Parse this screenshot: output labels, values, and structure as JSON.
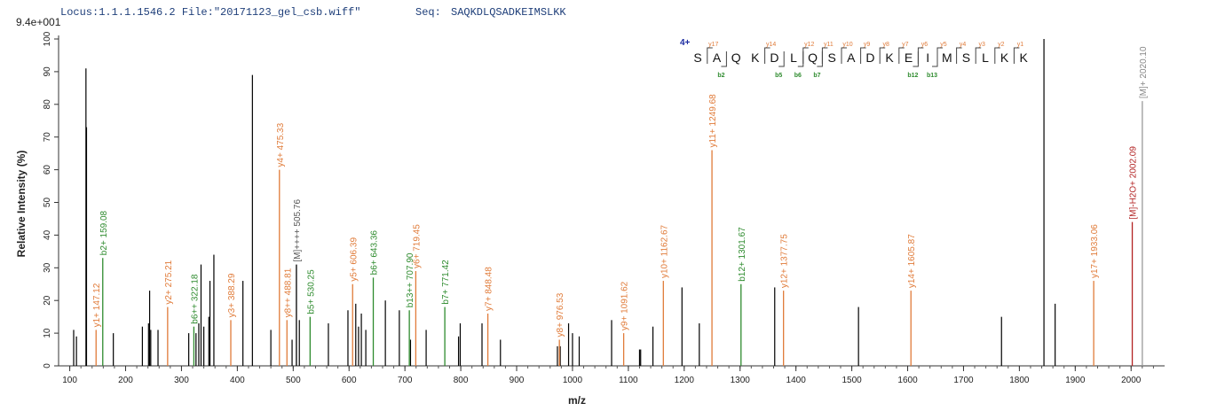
{
  "header": {
    "locus": "Locus:1.1.1.1546.2 File:\"20171123_gel_csb.wiff\"",
    "seq_label": "Seq:",
    "seq_value": "SAQKDLQSADKEIMSLKK",
    "scale": "9.4e+001"
  },
  "colors": {
    "y_ion": "#e07b39",
    "b_ion": "#2e8b2e",
    "precursor": "#b22222",
    "unassigned": "#000000",
    "header_blue": "#1f3f7a"
  },
  "chart_data": {
    "type": "bar",
    "xlabel": "m/z",
    "ylabel": "Relative Intensity (%)",
    "xlim": [
      80,
      2060
    ],
    "ylim": [
      0,
      100
    ],
    "x_ticks": [
      100,
      200,
      300,
      400,
      500,
      600,
      700,
      800,
      900,
      1000,
      1100,
      1200,
      1300,
      1400,
      1500,
      1600,
      1700,
      1800,
      1900,
      2000
    ],
    "y_ticks": [
      0,
      10,
      20,
      30,
      40,
      50,
      60,
      70,
      80,
      90,
      100
    ],
    "annotated_peaks": [
      {
        "mz": 147.12,
        "intensity": 11,
        "label": "y1+ 147.12",
        "ion": "y"
      },
      {
        "mz": 159.08,
        "intensity": 33,
        "label": "b2+ 159.08",
        "ion": "b"
      },
      {
        "mz": 275.21,
        "intensity": 18,
        "label": "y2+ 275.21",
        "ion": "y"
      },
      {
        "mz": 322.18,
        "intensity": 12,
        "label": "b6++ 322.18",
        "ion": "b"
      },
      {
        "mz": 388.29,
        "intensity": 14,
        "label": "y3+ 388.29",
        "ion": "y"
      },
      {
        "mz": 475.33,
        "intensity": 60,
        "label": "y4+ 475.33",
        "ion": "y"
      },
      {
        "mz": 488.81,
        "intensity": 14,
        "label": "y8++ 488.81",
        "ion": "y"
      },
      {
        "mz": 505.76,
        "intensity": 31,
        "label": "[M]++++ 505.76",
        "ion": "unassigned"
      },
      {
        "mz": 530.25,
        "intensity": 15,
        "label": "b5+ 530.25",
        "ion": "b"
      },
      {
        "mz": 606.39,
        "intensity": 25,
        "label": "y5+ 606.39",
        "ion": "y"
      },
      {
        "mz": 643.36,
        "intensity": 27,
        "label": "b6+ 643.36",
        "ion": "b"
      },
      {
        "mz": 707.9,
        "intensity": 17,
        "label": "b13++ 707.90",
        "ion": "b"
      },
      {
        "mz": 719.45,
        "intensity": 29,
        "label": "y6+ 719.45",
        "ion": "y"
      },
      {
        "mz": 771.42,
        "intensity": 18,
        "label": "b7+ 771.42",
        "ion": "b"
      },
      {
        "mz": 848.48,
        "intensity": 16,
        "label": "y7+ 848.48",
        "ion": "y"
      },
      {
        "mz": 976.53,
        "intensity": 8,
        "label": "y8+ 976.53",
        "ion": "y"
      },
      {
        "mz": 1091.62,
        "intensity": 10,
        "label": "y9+ 1091.62",
        "ion": "y"
      },
      {
        "mz": 1162.67,
        "intensity": 26,
        "label": "y10+ 1162.67",
        "ion": "y"
      },
      {
        "mz": 1249.68,
        "intensity": 66,
        "label": "y11+ 1249.68",
        "ion": "y"
      },
      {
        "mz": 1301.67,
        "intensity": 25,
        "label": "b12+ 1301.67",
        "ion": "b"
      },
      {
        "mz": 1377.75,
        "intensity": 23,
        "label": "y12+ 1377.75",
        "ion": "y"
      },
      {
        "mz": 1605.87,
        "intensity": 23,
        "label": "y14+ 1605.87",
        "ion": "y"
      },
      {
        "mz": 1933.06,
        "intensity": 26,
        "label": "y17+ 1933.06",
        "ion": "y"
      },
      {
        "mz": 2002.09,
        "intensity": 44,
        "label": "[M]-H2O+ 2002.09",
        "ion": "precursor"
      },
      {
        "mz": 2020.1,
        "intensity": 81,
        "label": "[M]+ 2020.10",
        "ion": "unassigned"
      }
    ],
    "unannotated_peaks": [
      {
        "mz": 107,
        "intensity": 11
      },
      {
        "mz": 112,
        "intensity": 9
      },
      {
        "mz": 129,
        "intensity": 91
      },
      {
        "mz": 130,
        "intensity": 73
      },
      {
        "mz": 178,
        "intensity": 10
      },
      {
        "mz": 230,
        "intensity": 12
      },
      {
        "mz": 241,
        "intensity": 13
      },
      {
        "mz": 243,
        "intensity": 23
      },
      {
        "mz": 245,
        "intensity": 11
      },
      {
        "mz": 258,
        "intensity": 11
      },
      {
        "mz": 313,
        "intensity": 10
      },
      {
        "mz": 326,
        "intensity": 10
      },
      {
        "mz": 331,
        "intensity": 13
      },
      {
        "mz": 335,
        "intensity": 31
      },
      {
        "mz": 340,
        "intensity": 12
      },
      {
        "mz": 349,
        "intensity": 15
      },
      {
        "mz": 351,
        "intensity": 26
      },
      {
        "mz": 358,
        "intensity": 34
      },
      {
        "mz": 410,
        "intensity": 26
      },
      {
        "mz": 427,
        "intensity": 89
      },
      {
        "mz": 460,
        "intensity": 11
      },
      {
        "mz": 498,
        "intensity": 8
      },
      {
        "mz": 511,
        "intensity": 14
      },
      {
        "mz": 563,
        "intensity": 13
      },
      {
        "mz": 598,
        "intensity": 17
      },
      {
        "mz": 612,
        "intensity": 19
      },
      {
        "mz": 617,
        "intensity": 12
      },
      {
        "mz": 622,
        "intensity": 16
      },
      {
        "mz": 630,
        "intensity": 11
      },
      {
        "mz": 665,
        "intensity": 20
      },
      {
        "mz": 690,
        "intensity": 17
      },
      {
        "mz": 710,
        "intensity": 8
      },
      {
        "mz": 738,
        "intensity": 11
      },
      {
        "mz": 796,
        "intensity": 9
      },
      {
        "mz": 799,
        "intensity": 13
      },
      {
        "mz": 838,
        "intensity": 13
      },
      {
        "mz": 871,
        "intensity": 8
      },
      {
        "mz": 973,
        "intensity": 6
      },
      {
        "mz": 978,
        "intensity": 6
      },
      {
        "mz": 993,
        "intensity": 13
      },
      {
        "mz": 1000,
        "intensity": 10
      },
      {
        "mz": 1012,
        "intensity": 9
      },
      {
        "mz": 1070,
        "intensity": 14
      },
      {
        "mz": 1120,
        "intensity": 5
      },
      {
        "mz": 1122,
        "intensity": 5
      },
      {
        "mz": 1144,
        "intensity": 12
      },
      {
        "mz": 1196,
        "intensity": 24
      },
      {
        "mz": 1227,
        "intensity": 13
      },
      {
        "mz": 1362,
        "intensity": 24
      },
      {
        "mz": 1512,
        "intensity": 18
      },
      {
        "mz": 1768,
        "intensity": 15
      },
      {
        "mz": 1844,
        "intensity": 100
      },
      {
        "mz": 1864,
        "intensity": 19
      }
    ],
    "sequence": {
      "charge": "4+",
      "residues": [
        "S",
        "A",
        "Q",
        "K",
        "D",
        "L",
        "Q",
        "S",
        "A",
        "D",
        "K",
        "E",
        "I",
        "M",
        "S",
        "L",
        "K",
        "K"
      ],
      "y_ions": [
        "y17",
        "y14",
        "y12",
        "y11",
        "y10",
        "y9",
        "y8",
        "y7",
        "y6",
        "y5",
        "y4",
        "y3",
        "y2",
        "y1"
      ],
      "y_ion_positions": [
        1,
        4,
        6,
        7,
        8,
        9,
        10,
        11,
        12,
        13,
        14,
        15,
        16,
        17
      ],
      "b_ions": [
        "b2",
        "b5",
        "b6",
        "b7",
        "b12",
        "b13"
      ],
      "b_ion_positions": [
        2,
        5,
        6,
        7,
        12,
        13
      ]
    }
  }
}
